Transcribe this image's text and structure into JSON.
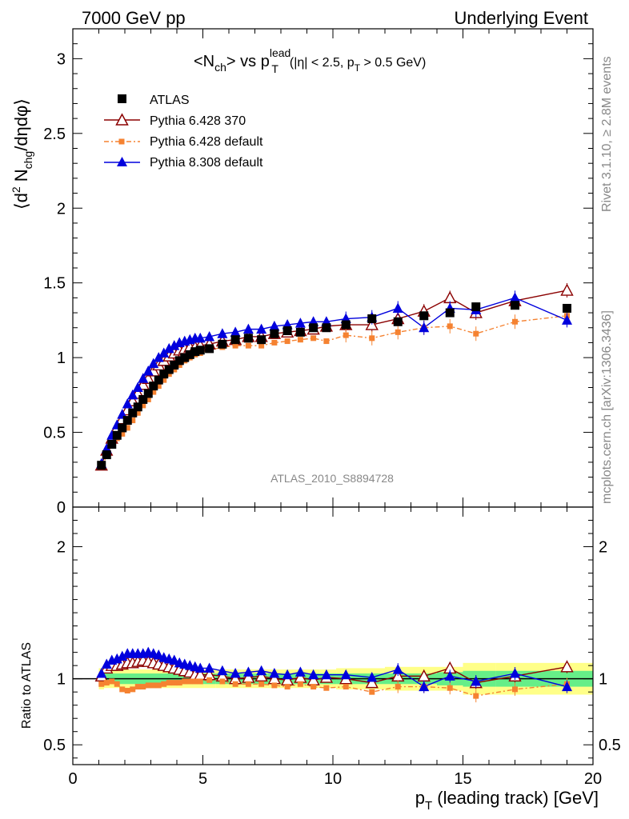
{
  "header": {
    "left": "7000 GeV pp",
    "right": "Underlying Event"
  },
  "plot_title": {
    "main": "<N",
    "main_sub": "ch",
    "vs": "> vs p",
    "sup": "lead",
    "sub_t": "T",
    "cuts_a": "(|η| < 2.5, p",
    "cuts_sub": "T",
    "cuts_b": " > 0.5 GeV)"
  },
  "side_text": {
    "rivet": "Rivet 3.1.10, ≥ 2.8M events",
    "mcplots": "mcplots.cern.ch [arXiv:1306.3436]"
  },
  "analysis_id": "ATLAS_2010_S8894728",
  "upper_ylabel": {
    "a": "⟨d",
    "sup": "2",
    "b": " N",
    "sub": "chg",
    "c": "/dηdφ⟩"
  },
  "lower_ylabel": "Ratio to ATLAS",
  "xlabel": {
    "a": "p",
    "sub": "T",
    "b": " (leading track) [GeV]"
  },
  "colors": {
    "atlas": "#000000",
    "p6_370": "#8b0000",
    "p6_default": "#f58231",
    "p8_default": "#0000dd",
    "band_inner": "#66ee88",
    "band_outer": "#ffff88"
  },
  "chart_data": [
    {
      "type": "scatter",
      "panel": "main",
      "xlim": [
        0,
        20
      ],
      "ylim": [
        0,
        3.2
      ],
      "x_ticks": [
        "0",
        "5",
        "10",
        "15",
        "20"
      ],
      "y_ticks": [
        "0",
        "0.5",
        "1",
        "1.5",
        "2",
        "2.5",
        "3"
      ],
      "legend_position": "top-left",
      "x": [
        1.1,
        1.3,
        1.5,
        1.7,
        1.9,
        2.1,
        2.3,
        2.5,
        2.7,
        2.9,
        3.1,
        3.3,
        3.5,
        3.7,
        3.9,
        4.1,
        4.3,
        4.5,
        4.7,
        4.9,
        5.25,
        5.75,
        6.25,
        6.75,
        7.25,
        7.75,
        8.25,
        8.75,
        9.25,
        9.75,
        10.5,
        11.5,
        12.5,
        13.5,
        14.5,
        15.5,
        17.0,
        19.0
      ],
      "series": [
        {
          "name": "ATLAS",
          "marker": "square",
          "values": [
            0.28,
            0.35,
            0.42,
            0.48,
            0.53,
            0.58,
            0.63,
            0.67,
            0.72,
            0.76,
            0.81,
            0.85,
            0.89,
            0.92,
            0.95,
            0.98,
            1.0,
            1.02,
            1.04,
            1.05,
            1.06,
            1.09,
            1.12,
            1.13,
            1.12,
            1.16,
            1.18,
            1.17,
            1.2,
            1.2,
            1.22,
            1.26,
            1.24,
            1.28,
            1.3,
            1.34,
            1.35,
            1.33
          ]
        },
        {
          "name": "Pythia 6.428 370",
          "marker": "open-triangle",
          "values": [
            0.28,
            0.38,
            0.46,
            0.53,
            0.59,
            0.65,
            0.71,
            0.76,
            0.82,
            0.86,
            0.91,
            0.95,
            0.98,
            1.01,
            1.03,
            1.05,
            1.06,
            1.07,
            1.07,
            1.08,
            1.09,
            1.11,
            1.12,
            1.14,
            1.14,
            1.16,
            1.17,
            1.18,
            1.19,
            1.21,
            1.22,
            1.22,
            1.26,
            1.31,
            1.4,
            1.3,
            1.38,
            1.45
          ]
        },
        {
          "name": "Pythia 6.428 default",
          "marker": "filled-square-small",
          "values": [
            0.27,
            0.34,
            0.41,
            0.46,
            0.49,
            0.53,
            0.58,
            0.63,
            0.68,
            0.72,
            0.77,
            0.81,
            0.85,
            0.89,
            0.92,
            0.95,
            0.98,
            1.0,
            1.02,
            1.03,
            1.05,
            1.07,
            1.08,
            1.08,
            1.08,
            1.1,
            1.11,
            1.12,
            1.13,
            1.11,
            1.15,
            1.13,
            1.17,
            1.2,
            1.21,
            1.16,
            1.24,
            1.28
          ]
        },
        {
          "name": "Pythia 8.308 default",
          "marker": "filled-triangle",
          "values": [
            0.29,
            0.39,
            0.48,
            0.55,
            0.62,
            0.69,
            0.75,
            0.8,
            0.86,
            0.91,
            0.96,
            1.0,
            1.03,
            1.06,
            1.08,
            1.1,
            1.11,
            1.12,
            1.13,
            1.13,
            1.14,
            1.16,
            1.17,
            1.19,
            1.19,
            1.21,
            1.22,
            1.23,
            1.24,
            1.24,
            1.26,
            1.27,
            1.33,
            1.2,
            1.33,
            1.32,
            1.4,
            1.25
          ]
        }
      ]
    },
    {
      "type": "scatter",
      "panel": "ratio",
      "xlim": [
        0,
        20
      ],
      "ylim": [
        0.35,
        2.3
      ],
      "x_ticks": [
        "0",
        "5",
        "10",
        "15",
        "20"
      ],
      "y_ticks": [
        "0.5",
        "1",
        "2"
      ],
      "ylabel": "Ratio to ATLAS",
      "x": [
        1.1,
        1.3,
        1.5,
        1.7,
        1.9,
        2.1,
        2.3,
        2.5,
        2.7,
        2.9,
        3.1,
        3.3,
        3.5,
        3.7,
        3.9,
        4.1,
        4.3,
        4.5,
        4.7,
        4.9,
        5.25,
        5.75,
        6.25,
        6.75,
        7.25,
        7.75,
        8.25,
        8.75,
        9.25,
        9.75,
        10.5,
        11.5,
        12.5,
        13.5,
        14.5,
        15.5,
        17.0,
        19.0
      ],
      "series": [
        {
          "name": "Pythia 6.428 370",
          "values": [
            1.02,
            1.08,
            1.1,
            1.1,
            1.11,
            1.12,
            1.12,
            1.13,
            1.14,
            1.13,
            1.12,
            1.11,
            1.1,
            1.09,
            1.08,
            1.07,
            1.06,
            1.05,
            1.03,
            1.03,
            1.03,
            1.02,
            1.0,
            1.01,
            1.02,
            1.0,
            0.99,
            1.01,
            0.99,
            1.01,
            1.0,
            0.97,
            1.02,
            1.02,
            1.08,
            0.97,
            1.02,
            1.09
          ]
        },
        {
          "name": "Pythia 6.428 default",
          "values": [
            0.96,
            0.97,
            0.98,
            0.96,
            0.92,
            0.91,
            0.92,
            0.94,
            0.94,
            0.95,
            0.95,
            0.95,
            0.96,
            0.97,
            0.97,
            0.97,
            0.98,
            0.98,
            0.98,
            0.98,
            0.99,
            0.98,
            0.96,
            0.96,
            0.96,
            0.95,
            0.94,
            0.96,
            0.94,
            0.93,
            0.94,
            0.9,
            0.94,
            0.94,
            0.93,
            0.87,
            0.92,
            0.96
          ]
        },
        {
          "name": "Pythia 8.308 default",
          "values": [
            1.04,
            1.11,
            1.14,
            1.15,
            1.17,
            1.19,
            1.19,
            1.19,
            1.19,
            1.2,
            1.19,
            1.18,
            1.16,
            1.15,
            1.14,
            1.12,
            1.11,
            1.1,
            1.09,
            1.08,
            1.08,
            1.06,
            1.04,
            1.05,
            1.06,
            1.04,
            1.03,
            1.05,
            1.03,
            1.03,
            1.03,
            1.01,
            1.07,
            0.94,
            1.02,
            0.98,
            1.04,
            0.94
          ]
        }
      ],
      "band_inner": [
        0.04,
        0.04,
        0.04,
        0.04,
        0.04,
        0.04,
        0.04,
        0.04,
        0.04,
        0.04,
        0.04,
        0.04,
        0.04,
        0.04,
        0.04,
        0.04,
        0.04,
        0.04,
        0.04,
        0.04,
        0.04,
        0.04,
        0.04,
        0.04,
        0.04,
        0.04,
        0.04,
        0.04,
        0.04,
        0.04,
        0.04,
        0.04,
        0.04,
        0.04,
        0.05,
        0.06,
        0.06,
        0.06
      ],
      "band_outer": [
        0.08,
        0.07,
        0.07,
        0.07,
        0.07,
        0.07,
        0.07,
        0.07,
        0.07,
        0.07,
        0.07,
        0.07,
        0.07,
        0.07,
        0.07,
        0.07,
        0.07,
        0.07,
        0.07,
        0.07,
        0.07,
        0.07,
        0.07,
        0.07,
        0.07,
        0.07,
        0.07,
        0.07,
        0.07,
        0.07,
        0.08,
        0.08,
        0.09,
        0.09,
        0.09,
        0.12,
        0.12,
        0.12
      ]
    }
  ]
}
